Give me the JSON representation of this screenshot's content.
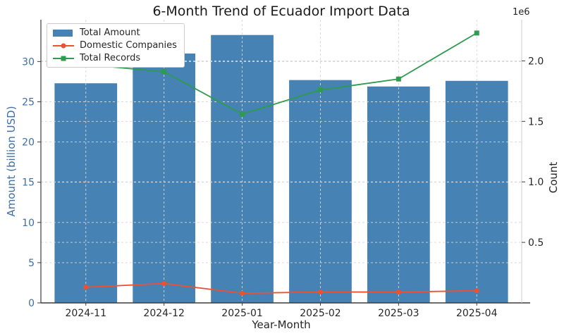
{
  "chart_data": {
    "type": "bar+line (dual axis)",
    "title": "6-Month Trend of Ecuador Import Data",
    "xlabel": "Year-Month",
    "ylabel_left": "Amount (billion USD)",
    "ylabel_right": "Count",
    "right_axis_offset_text": "1e6",
    "categories": [
      "2024-11",
      "2024-12",
      "2025-01",
      "2025-02",
      "2025-03",
      "2025-04"
    ],
    "series": [
      {
        "name": "Total Amount",
        "type": "bar",
        "axis": "left",
        "color": "#4682b4",
        "values": [
          27.3,
          31.0,
          33.3,
          27.7,
          26.9,
          27.6
        ]
      },
      {
        "name": "Domestic Companies",
        "type": "line",
        "marker": "circle",
        "axis": "right",
        "color": "#f0502e",
        "values_1e6": [
          0.13,
          0.16,
          0.08,
          0.09,
          0.09,
          0.1
        ]
      },
      {
        "name": "Total Records",
        "type": "line",
        "marker": "square",
        "axis": "right",
        "color": "#2e9b4e",
        "values_1e6": [
          1.97,
          1.91,
          1.56,
          1.76,
          1.85,
          2.23
        ]
      }
    ],
    "left_ticks": [
      0,
      5,
      10,
      15,
      20,
      25,
      30
    ],
    "right_ticks": [
      "0.5",
      "1.0",
      "1.5",
      "2.0"
    ],
    "left_ylim": [
      0,
      35.2
    ],
    "right_ylim": [
      0,
      2.34
    ],
    "legend_position": "upper left",
    "grid": "dashed, both axes major ticks",
    "colors": {
      "bar": "#4682b4",
      "line_domestic": "#f0502e",
      "line_records": "#2e9b4e",
      "left_tick_text": "#3d6fa6",
      "tick_text": "#262626",
      "gridline": "#d6d6d6",
      "spine_dark": "#3c3c3c",
      "spine_light": "#cccccc"
    }
  }
}
